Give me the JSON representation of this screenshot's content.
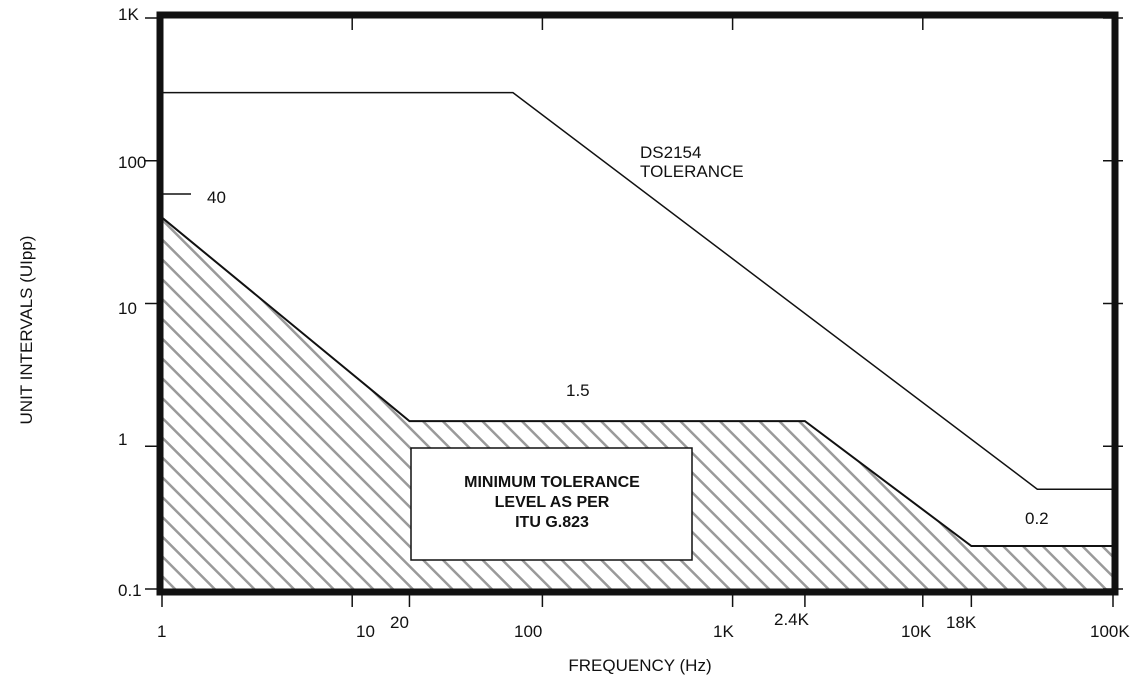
{
  "chart_data": {
    "type": "line",
    "x_scale": "log",
    "y_scale": "log",
    "xlim": [
      1,
      100000
    ],
    "ylim": [
      0.1,
      1000
    ],
    "xlabel": "FREQUENCY (Hz)",
    "ylabel": "UNIT INTERVALS (UIpp)",
    "grid": false,
    "x_tick_labels": [
      {
        "value": 1,
        "label": "1"
      },
      {
        "value": 10,
        "label": "10"
      },
      {
        "value": 20,
        "label": "20"
      },
      {
        "value": 100,
        "label": "100"
      },
      {
        "value": 1000,
        "label": "1K"
      },
      {
        "value": 2400,
        "label": "2.4K"
      },
      {
        "value": 10000,
        "label": "10K"
      },
      {
        "value": 18000,
        "label": "18K"
      },
      {
        "value": 100000,
        "label": "100K"
      }
    ],
    "y_tick_labels": [
      {
        "value": 0.1,
        "label": "0.1"
      },
      {
        "value": 1,
        "label": "1"
      },
      {
        "value": 10,
        "label": "10"
      },
      {
        "value": 100,
        "label": "100"
      },
      {
        "value": 1000,
        "label": "1K"
      }
    ],
    "series": [
      {
        "points": [
          [
            1,
            300
          ],
          [
            70,
            300
          ],
          [
            40000,
            0.5
          ],
          [
            100000,
            0.5
          ]
        ],
        "fill": false
      },
      {
        "points": [
          [
            1,
            40
          ],
          [
            20,
            1.5
          ],
          [
            2400,
            1.5
          ],
          [
            18000,
            0.2
          ],
          [
            100000,
            0.2
          ]
        ],
        "fill": "hatch"
      }
    ],
    "annotations": {
      "ds_label_line1": "DS2154",
      "ds_label_line2": "TOLERANCE",
      "val_40": "40",
      "val_1_5": "1.5",
      "val_0_2": "0.2",
      "box_line1": "MINIMUM TOLERANCE",
      "box_line2": "LEVEL AS PER",
      "box_line3": "ITU G.823"
    }
  }
}
